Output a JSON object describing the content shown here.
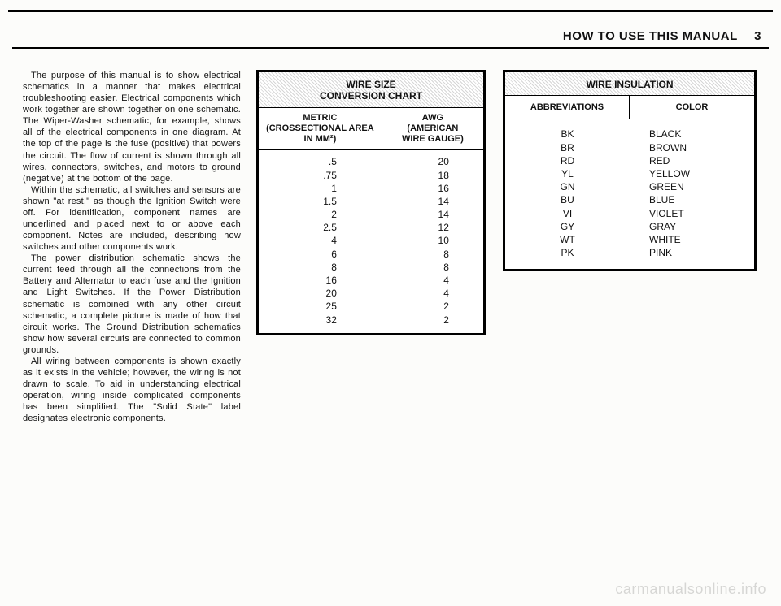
{
  "header": {
    "title": "HOW TO USE THIS MANUAL",
    "page_number": "3"
  },
  "body_paragraphs": [
    "The purpose of this manual is to show electrical schematics in a manner that makes electrical troubleshooting easier. Electrical components which work together are shown together on one schematic. The Wiper-Washer schematic, for example, shows all of the electrical components in one diagram. At the top of the page is the fuse (positive) that powers the circuit. The flow of current is shown through all wires, connectors, switches, and motors to ground (negative) at the bottom of the page.",
    "Within the schematic, all switches and sensors are shown \"at rest,\" as though the Ignition Switch were off. For identification, component names are underlined and placed next to or above each component. Notes are included, describing how switches and other components work.",
    "The power distribution schematic shows the current feed through all the connections from the Battery and Alternator to each fuse and the Ignition and Light Switches. If the Power Distribution schematic is combined with any other circuit schematic, a complete picture is made of how that circuit works. The Ground Distribution schematics show how several circuits are connected to common grounds.",
    "All wiring between components is shown exactly as it exists in the vehicle; however, the wiring is not drawn to scale. To aid in understanding electrical operation, wiring inside complicated components has been simplified. The \"Solid State\" label designates electronic components."
  ],
  "wire_size_table": {
    "title_line1": "WIRE SIZE",
    "title_line2": "CONVERSION CHART",
    "col1_header_l1": "METRIC",
    "col1_header_l2": "(CROSSECTIONAL AREA",
    "col1_header_l3": "IN MM²)",
    "col2_header_l1": "AWG",
    "col2_header_l2": "(AMERICAN",
    "col2_header_l3": "WIRE GAUGE)",
    "rows": [
      {
        "metric": ".5",
        "awg": "20"
      },
      {
        "metric": ".75",
        "awg": "18"
      },
      {
        "metric": "1",
        "awg": "16"
      },
      {
        "metric": "1.5",
        "awg": "14"
      },
      {
        "metric": "2",
        "awg": "14"
      },
      {
        "metric": "2.5",
        "awg": "12"
      },
      {
        "metric": "4",
        "awg": "10"
      },
      {
        "metric": "6",
        "awg": "8"
      },
      {
        "metric": "8",
        "awg": "8"
      },
      {
        "metric": "16",
        "awg": "4"
      },
      {
        "metric": "20",
        "awg": "4"
      },
      {
        "metric": "25",
        "awg": "2"
      },
      {
        "metric": "32",
        "awg": "2"
      }
    ]
  },
  "wire_insulation_table": {
    "title": "WIRE INSULATION",
    "col1_header": "ABBREVIATIONS",
    "col2_header": "COLOR",
    "rows": [
      {
        "abbr": "BK",
        "color": "BLACK"
      },
      {
        "abbr": "BR",
        "color": "BROWN"
      },
      {
        "abbr": "RD",
        "color": "RED"
      },
      {
        "abbr": "YL",
        "color": "YELLOW"
      },
      {
        "abbr": "GN",
        "color": "GREEN"
      },
      {
        "abbr": "BU",
        "color": "BLUE"
      },
      {
        "abbr": "VI",
        "color": "VIOLET"
      },
      {
        "abbr": "GY",
        "color": "GRAY"
      },
      {
        "abbr": "WT",
        "color": "WHITE"
      },
      {
        "abbr": "PK",
        "color": "PINK"
      }
    ]
  },
  "watermark": "carmanualsonline.info"
}
